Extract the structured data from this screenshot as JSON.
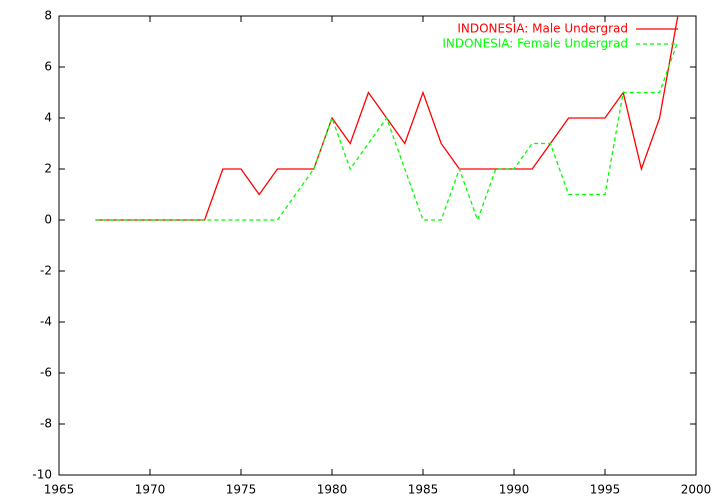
{
  "chart_data": {
    "type": "line",
    "x": [
      1967,
      1968,
      1969,
      1970,
      1971,
      1972,
      1973,
      1974,
      1975,
      1976,
      1977,
      1978,
      1979,
      1980,
      1981,
      1982,
      1983,
      1984,
      1985,
      1986,
      1987,
      1988,
      1989,
      1990,
      1991,
      1992,
      1993,
      1994,
      1995,
      1996,
      1997,
      1998,
      1999
    ],
    "series": [
      {
        "name": "INDONESIA: Male Undergrad",
        "color": "#ff0000",
        "dashed": false,
        "values": [
          0,
          0,
          0,
          0,
          0,
          0,
          0,
          2,
          2,
          1,
          2,
          2,
          2,
          4,
          3,
          5,
          4,
          3,
          5,
          3,
          2,
          2,
          2,
          2,
          2,
          3,
          4,
          4,
          4,
          5,
          2,
          4,
          8
        ]
      },
      {
        "name": "INDONESIA: Female Undergrad",
        "color": "#00ff00",
        "dashed": true,
        "values": [
          0,
          0,
          0,
          0,
          0,
          0,
          0,
          0,
          0,
          0,
          0,
          1,
          2,
          4,
          2,
          3,
          4,
          2,
          0,
          0,
          2,
          0,
          2,
          2,
          3,
          3,
          1,
          1,
          1,
          5,
          5,
          5,
          7
        ]
      }
    ],
    "xlim": [
      1965,
      2000
    ],
    "xticks": [
      1965,
      1970,
      1975,
      1980,
      1985,
      1990,
      1995,
      2000
    ],
    "ylim": [
      -10,
      8
    ],
    "yticks": [
      -10,
      -8,
      -6,
      -4,
      -2,
      0,
      2,
      4,
      6,
      8
    ],
    "legend": "top-right"
  }
}
